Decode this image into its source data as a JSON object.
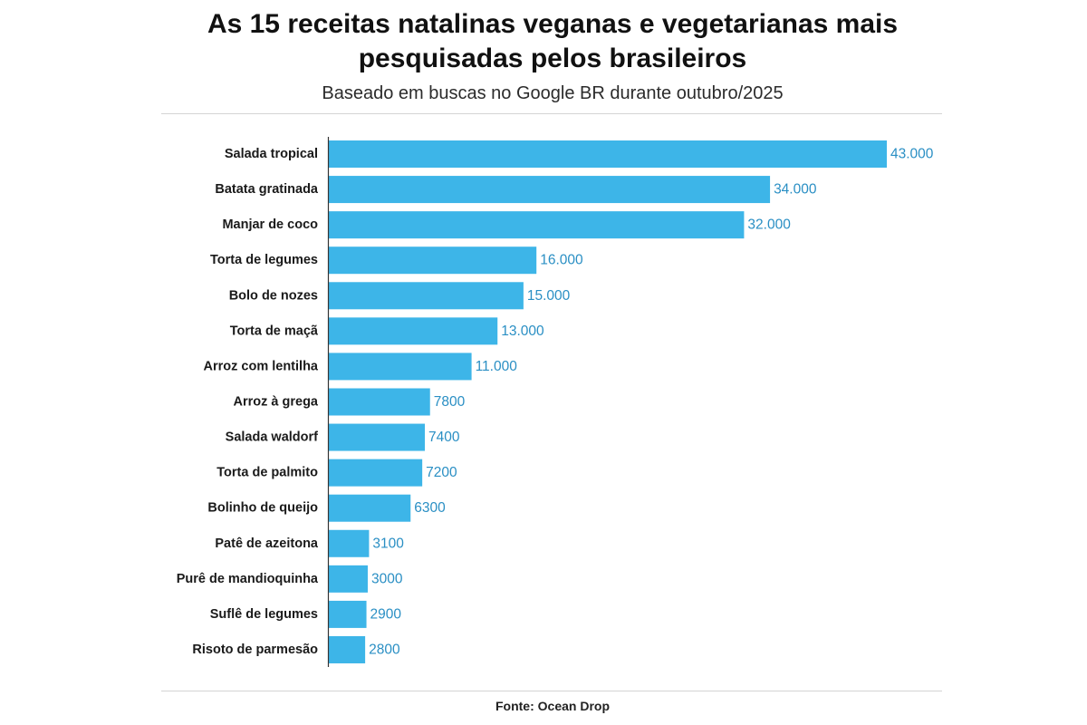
{
  "header": {
    "title": "As 15 receitas natalinas veganas e vegetarianas mais pesquisadas pelos brasileiros",
    "subtitle": "Baseado em buscas no Google BR durante outubro/2025"
  },
  "footer": {
    "source": "Fonte: Ocean Drop"
  },
  "colors": {
    "bar": "#3db5e8",
    "value_label": "#2a8fc4",
    "axis_line": "#333333"
  },
  "chart_data": {
    "type": "bar",
    "orientation": "horizontal",
    "title": "As 15 receitas natalinas veganas e vegetarianas mais pesquisadas pelos brasileiros",
    "subtitle": "Baseado em buscas no Google BR durante outubro/2025",
    "categories": [
      "Salada tropical",
      "Batata gratinada",
      "Manjar de coco",
      "Torta de legumes",
      "Bolo de nozes",
      "Torta de maçã",
      "Arroz com lentilha",
      "Arroz à grega",
      "Salada waldorf",
      "Torta de palmito",
      "Bolinho de queijo",
      "Patê de azeitona",
      "Purê de mandioquinha",
      "Suflê de legumes",
      "Risoto de parmesão"
    ],
    "values": [
      43000,
      34000,
      32000,
      16000,
      15000,
      13000,
      11000,
      7800,
      7400,
      7200,
      6300,
      3100,
      3000,
      2900,
      2800
    ],
    "value_labels": [
      "43.000",
      "34.000",
      "32.000",
      "16.000",
      "15.000",
      "13.000",
      "11.000",
      "7800",
      "7400",
      "7200",
      "6300",
      "3100",
      "3000",
      "2900",
      "2800"
    ],
    "xlim": [
      0,
      43000
    ],
    "grid": false,
    "legend": "none"
  }
}
